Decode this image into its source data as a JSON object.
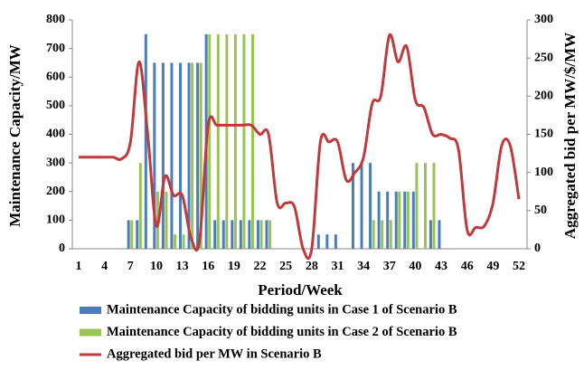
{
  "chart_data": {
    "type": "bar",
    "x_label": "Period/Week",
    "y_label": "Maintenance Capacity/MW",
    "y2_label": "Aggregated bid per MW/$/MW",
    "categories": [
      1,
      null,
      null,
      4,
      null,
      null,
      7,
      null,
      null,
      10,
      null,
      null,
      13,
      null,
      null,
      16,
      null,
      null,
      19,
      null,
      null,
      22,
      null,
      null,
      25,
      null,
      null,
      28,
      null,
      null,
      31,
      null,
      null,
      34,
      null,
      null,
      37,
      null,
      null,
      40,
      null,
      null,
      43,
      null,
      null,
      46,
      null,
      null,
      49,
      null,
      null,
      52
    ],
    "ylim": [
      0,
      800
    ],
    "yticks": [
      0,
      100,
      200,
      300,
      400,
      500,
      600,
      700,
      800
    ],
    "y2lim": [
      0,
      300
    ],
    "y2ticks": [
      0,
      50,
      100,
      150,
      200,
      250,
      300
    ],
    "series": [
      {
        "name": "Maintenance Capacity of bidding units in Case 1 of Scenario B",
        "color": "#4a7ebb",
        "type": "bar",
        "values": [
          0,
          0,
          0,
          0,
          0,
          0,
          100,
          100,
          750,
          650,
          650,
          650,
          650,
          650,
          650,
          750,
          100,
          100,
          100,
          100,
          100,
          100,
          100,
          0,
          0,
          0,
          0,
          0,
          50,
          50,
          50,
          0,
          300,
          300,
          300,
          200,
          200,
          200,
          200,
          200,
          0,
          100,
          100,
          0,
          0,
          0,
          0,
          0,
          0,
          0,
          0,
          0
        ]
      },
      {
        "name": "Maintenance Capacity of bidding units in Case 2 of Scenario B",
        "color": "#98c454",
        "type": "bar",
        "values": [
          0,
          0,
          0,
          0,
          0,
          0,
          100,
          300,
          0,
          200,
          200,
          50,
          50,
          650,
          650,
          750,
          750,
          750,
          750,
          750,
          750,
          100,
          100,
          0,
          0,
          0,
          0,
          0,
          0,
          0,
          0,
          0,
          0,
          0,
          100,
          100,
          100,
          200,
          200,
          300,
          300,
          300,
          0,
          0,
          0,
          0,
          0,
          0,
          0,
          0,
          0,
          0
        ]
      },
      {
        "name": "Aggregated bid per MW in Scenario B",
        "color": "#c0393b",
        "type": "line",
        "axis": "y2",
        "values": [
          120,
          120,
          120,
          120,
          120,
          118,
          140,
          245,
          150,
          30,
          95,
          70,
          70,
          15,
          10,
          162,
          162,
          162,
          162,
          162,
          162,
          150,
          150,
          60,
          60,
          55,
          0,
          0,
          140,
          140,
          140,
          90,
          100,
          120,
          190,
          200,
          280,
          245,
          265,
          195,
          185,
          150,
          150,
          145,
          130,
          25,
          28,
          30,
          60,
          135,
          135,
          65
        ]
      }
    ]
  }
}
